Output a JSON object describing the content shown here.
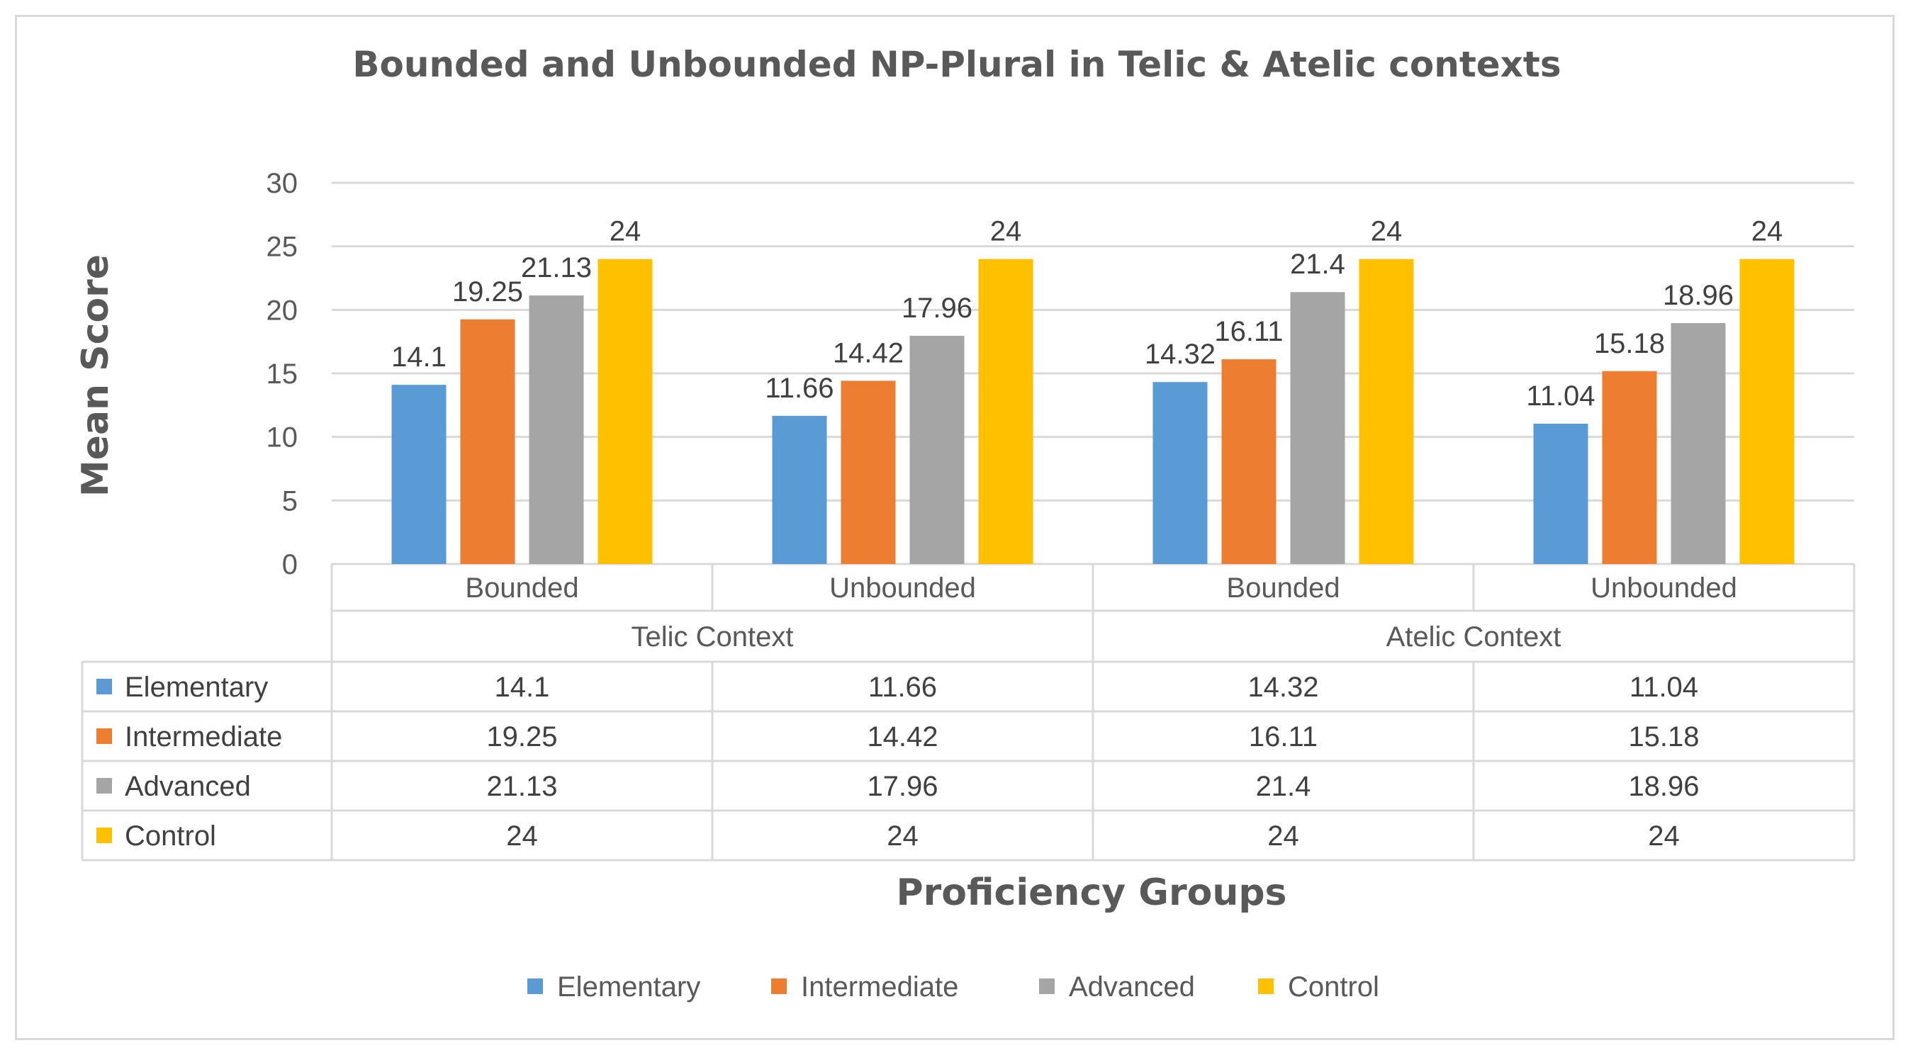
{
  "chart_data": {
    "type": "bar",
    "title": "Bounded and Unbounded NP-Plural in Telic & Atelic contexts",
    "xlabel": "Proficiency Groups",
    "ylabel": "Mean Score",
    "ylim": [
      0,
      30
    ],
    "yticks": [
      0,
      5,
      10,
      15,
      20,
      25,
      30
    ],
    "grid": true,
    "legend_position": "bottom",
    "categories": [
      "Bounded",
      "Unbounded",
      "Bounded",
      "Unbounded"
    ],
    "groups": [
      {
        "label": "Telic Context",
        "span": 2
      },
      {
        "label": "Atelic Context",
        "span": 2
      }
    ],
    "series": [
      {
        "name": "Elementary",
        "color": "#5b9bd5",
        "values": [
          14.1,
          11.66,
          14.32,
          11.04
        ]
      },
      {
        "name": "Intermediate",
        "color": "#ed7d31",
        "values": [
          19.25,
          14.42,
          16.11,
          15.18
        ]
      },
      {
        "name": "Advanced",
        "color": "#a5a5a5",
        "values": [
          21.13,
          17.96,
          21.4,
          18.96
        ]
      },
      {
        "name": "Control",
        "color": "#ffc000",
        "values": [
          24,
          24,
          24,
          24
        ]
      }
    ],
    "data_table": true
  }
}
